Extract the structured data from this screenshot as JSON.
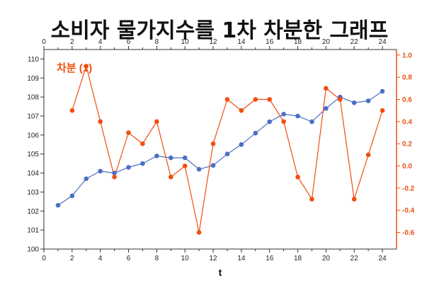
{
  "title": "소비자 물가지수를 1차 차분한 그래프",
  "chart_data": {
    "type": "line",
    "title": "소비자 물가지수를 1차 차분한 그래프",
    "xlabel": "t",
    "xlim": [
      0,
      25
    ],
    "ylim_left": [
      100,
      110.5
    ],
    "ylim_right": [
      -0.75,
      1.05
    ],
    "x_ticks": [
      0,
      2,
      4,
      6,
      8,
      10,
      12,
      14,
      16,
      18,
      20,
      22,
      24
    ],
    "y_ticks_left": [
      100,
      101,
      102,
      103,
      104,
      105,
      106,
      107,
      108,
      109,
      110
    ],
    "y_ticks_right": [
      -0.6,
      -0.4,
      -0.2,
      0.0,
      0.2,
      0.4,
      0.6,
      0.8,
      1.0
    ],
    "y_tick_labels_right": [
      "-0.6",
      "-0.4",
      "-0.2",
      "0.0",
      "0.2",
      "0.4",
      "0.6",
      "0.8",
      "1.0"
    ],
    "annotation": "차분 (1)",
    "colors": {
      "cpi": "#4a6fc4",
      "diff": "#f04e0f"
    },
    "series": [
      {
        "axis": "left",
        "x": [
          1,
          2,
          3,
          4,
          5,
          6,
          7,
          8,
          9,
          10,
          11,
          12,
          13,
          14,
          15,
          16,
          17,
          18,
          19,
          20,
          21,
          22,
          23,
          24
        ],
        "values": [
          102.3,
          102.8,
          103.7,
          104.1,
          104.0,
          104.3,
          104.5,
          104.9,
          104.8,
          104.8,
          104.2,
          104.4,
          105.0,
          105.5,
          106.1,
          106.7,
          107.1,
          107.0,
          106.7,
          107.4,
          108.0,
          107.7,
          107.8,
          108.3
        ]
      },
      {
        "axis": "right",
        "x": [
          2,
          3,
          4,
          5,
          6,
          7,
          8,
          9,
          10,
          11,
          12,
          13,
          14,
          15,
          16,
          17,
          18,
          19,
          20,
          21,
          22,
          23,
          24
        ],
        "values": [
          0.5,
          0.9,
          0.4,
          -0.1,
          0.3,
          0.2,
          0.4,
          -0.1,
          0.0,
          -0.6,
          0.2,
          0.6,
          0.5,
          0.6,
          0.6,
          0.4,
          -0.1,
          -0.3,
          0.7,
          0.6,
          -0.3,
          0.1,
          0.5
        ]
      }
    ]
  }
}
